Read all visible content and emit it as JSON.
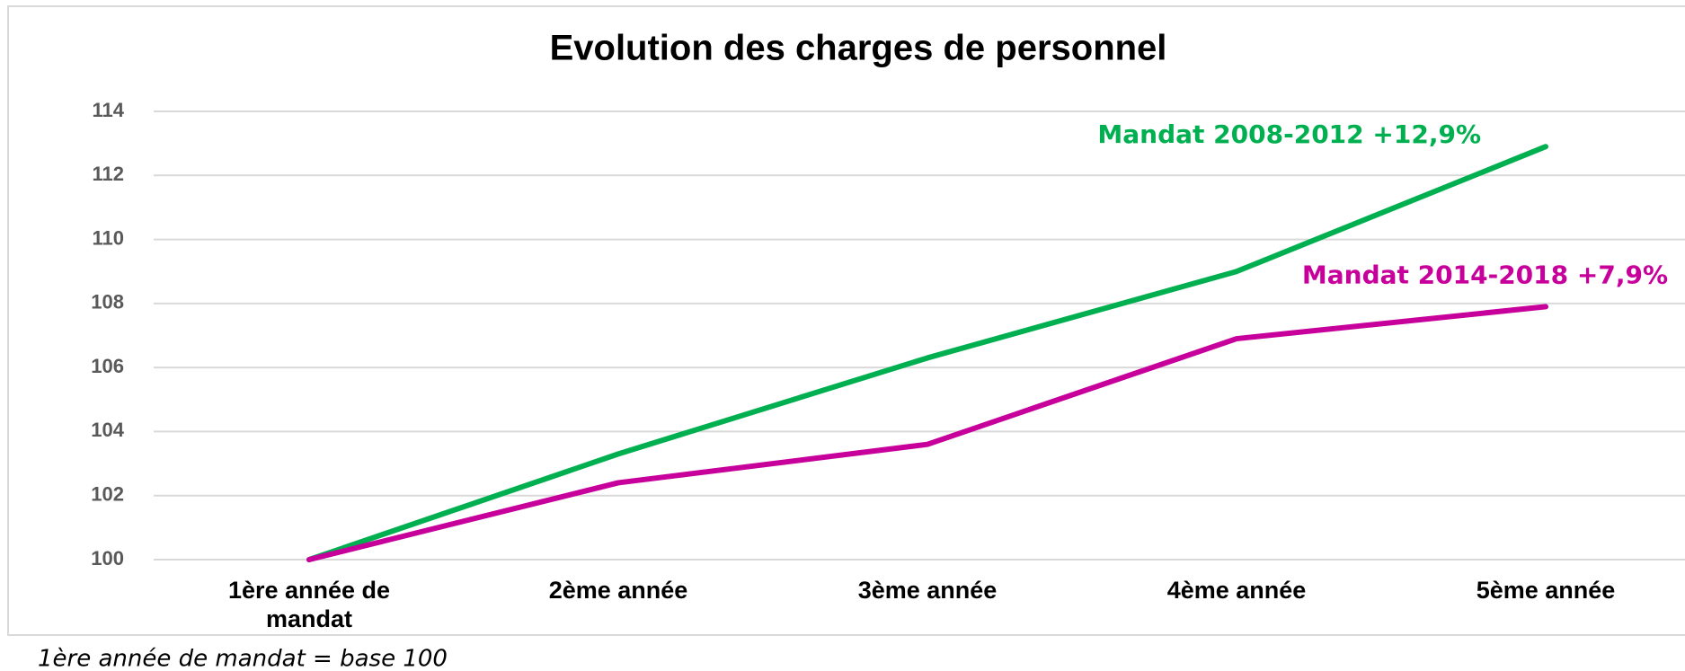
{
  "chart_data": {
    "type": "line",
    "title": "Evolution des charges de personnel",
    "categories": [
      "1ère année de mandat",
      "2ème année",
      "3ème année",
      "4ème année",
      "5ème année"
    ],
    "series": [
      {
        "name": "Mandat 2008-2012 +12,9%",
        "color": "#00b050",
        "values": [
          100,
          103.3,
          106.3,
          109,
          112.9
        ]
      },
      {
        "name": "Mandat 2014-2018 +7,9%",
        "color": "#c8009b",
        "values": [
          100,
          102.4,
          103.6,
          106.9,
          107.9
        ]
      }
    ],
    "ylim": [
      100,
      114
    ],
    "yticks": [
      100,
      102,
      104,
      106,
      108,
      110,
      112,
      114
    ],
    "grid": true,
    "annotation": "1ère année de mandat = base 100"
  }
}
